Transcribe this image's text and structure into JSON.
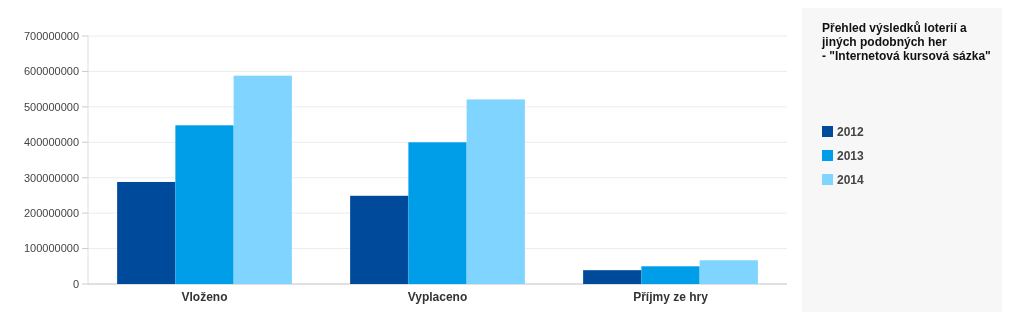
{
  "chart_data": {
    "type": "bar",
    "title": "Přehled výsledků loterií a jiných podobných her - \"Internetová kursová sázka\"",
    "categories": [
      "Vloženo",
      "Vyplaceno",
      "Příjmy ze hry"
    ],
    "series": [
      {
        "name": "2012",
        "color": "#004a9b",
        "values": [
          288000000,
          249000000,
          39000000
        ]
      },
      {
        "name": "2013",
        "color": "#009ee8",
        "values": [
          448000000,
          400000000,
          50000000
        ]
      },
      {
        "name": "2014",
        "color": "#7fd5ff",
        "values": [
          588000000,
          521000000,
          67000000
        ]
      }
    ],
    "ylim": [
      0,
      700000000
    ],
    "yticks": [
      0,
      100000000,
      200000000,
      300000000,
      400000000,
      500000000,
      600000000,
      700000000
    ],
    "grid": "y",
    "legend": "right"
  }
}
